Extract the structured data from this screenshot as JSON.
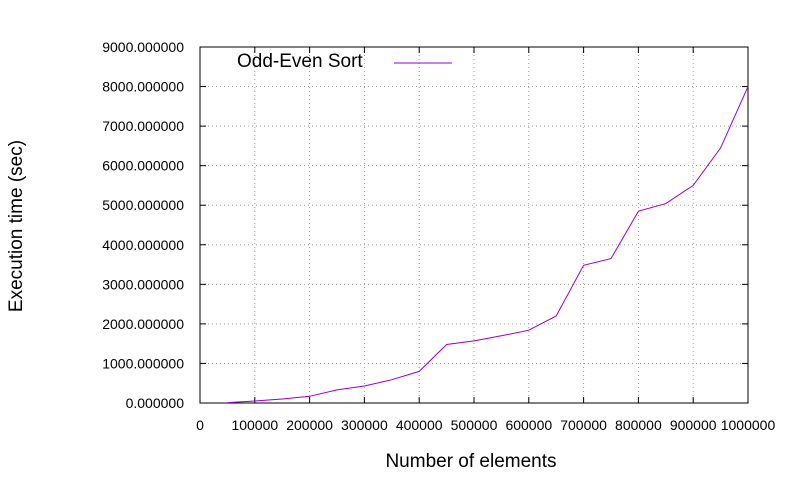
{
  "chart_data": {
    "type": "line",
    "title": "",
    "xlabel": "Number of elements",
    "ylabel": "Execution time (sec)",
    "xlim": [
      0,
      1000000
    ],
    "ylim": [
      0,
      9000
    ],
    "grid": true,
    "legend_position": "top-left",
    "x_ticks": [
      0,
      100000,
      200000,
      300000,
      400000,
      500000,
      600000,
      700000,
      800000,
      900000,
      1000000
    ],
    "x_tick_labels": [
      "0",
      "100000",
      "200000",
      "300000",
      "400000",
      "500000",
      "600000",
      "700000",
      "800000",
      "900000",
      "1000000"
    ],
    "y_ticks": [
      0,
      1000,
      2000,
      3000,
      4000,
      5000,
      6000,
      7000,
      8000,
      9000
    ],
    "y_tick_labels": [
      "0.000000",
      "1000.000000",
      "2000.000000",
      "3000.000000",
      "4000.000000",
      "5000.000000",
      "6000.000000",
      "7000.000000",
      "8000.000000",
      "9000.000000"
    ],
    "series": [
      {
        "name": "Odd-Even Sort",
        "color": "#9400d3",
        "x": [
          50000,
          100000,
          150000,
          200000,
          250000,
          300000,
          350000,
          400000,
          450000,
          500000,
          550000,
          600000,
          650000,
          700000,
          750000,
          800000,
          850000,
          900000,
          950000,
          1000000
        ],
        "y": [
          10,
          50,
          100,
          170,
          330,
          430,
          590,
          800,
          1480,
          1570,
          1700,
          1840,
          2200,
          3480,
          3650,
          4850,
          5040,
          5500,
          6450,
          8000
        ]
      }
    ]
  }
}
